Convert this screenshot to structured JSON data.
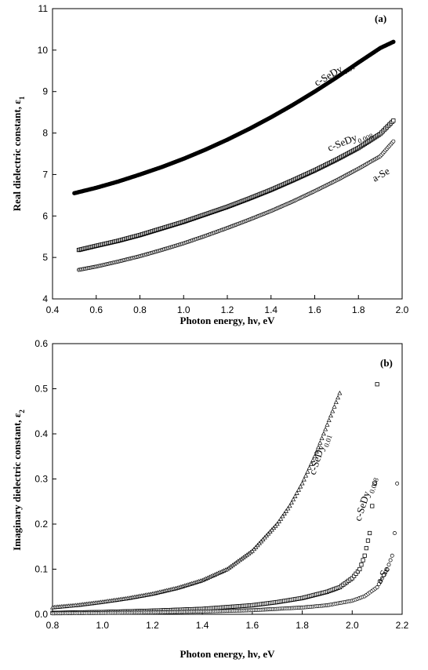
{
  "chart_data": [
    {
      "type": "scatter",
      "panel_tag": "(a)",
      "xlabel": "Photon energy, hν, eV",
      "ylabel": "Real dielectric constant, ε",
      "ylabel_sub": "1",
      "xlim": [
        0.4,
        2.0
      ],
      "ylim": [
        4,
        11
      ],
      "xticks": [
        "0.4",
        "0.6",
        "0.8",
        "1.0",
        "1.2",
        "1.4",
        "1.6",
        "1.8",
        "2.0"
      ],
      "yticks": [
        "4",
        "5",
        "6",
        "7",
        "8",
        "9",
        "10",
        "11"
      ],
      "grid": false,
      "series": [
        {
          "name": "c-SeDy",
          "name_sub": "0.01",
          "marker": "filled",
          "x": [
            0.5,
            0.6,
            0.7,
            0.8,
            0.9,
            1.0,
            1.1,
            1.2,
            1.3,
            1.4,
            1.5,
            1.6,
            1.7,
            1.8,
            1.9,
            1.96
          ],
          "y": [
            6.55,
            6.68,
            6.83,
            7.0,
            7.18,
            7.38,
            7.6,
            7.84,
            8.1,
            8.38,
            8.68,
            9.0,
            9.34,
            9.7,
            10.05,
            10.2
          ]
        },
        {
          "name": "c-SeDy",
          "name_sub": "0.008",
          "marker": "open-square",
          "x": [
            0.52,
            0.6,
            0.7,
            0.8,
            0.9,
            1.0,
            1.1,
            1.2,
            1.3,
            1.4,
            1.5,
            1.6,
            1.7,
            1.8,
            1.9,
            1.96
          ],
          "y": [
            5.18,
            5.28,
            5.4,
            5.54,
            5.7,
            5.86,
            6.04,
            6.22,
            6.42,
            6.63,
            6.86,
            7.1,
            7.36,
            7.64,
            7.98,
            8.3
          ]
        },
        {
          "name": "a-Se",
          "name_sub": "",
          "marker": "open-circle",
          "x": [
            0.52,
            0.6,
            0.7,
            0.8,
            0.9,
            1.0,
            1.1,
            1.2,
            1.3,
            1.4,
            1.5,
            1.6,
            1.7,
            1.8,
            1.9,
            1.96
          ],
          "y": [
            4.7,
            4.78,
            4.9,
            5.03,
            5.18,
            5.34,
            5.52,
            5.71,
            5.91,
            6.12,
            6.35,
            6.6,
            6.86,
            7.14,
            7.44,
            7.8
          ]
        }
      ]
    },
    {
      "type": "scatter",
      "panel_tag": "(b)",
      "xlabel": "Photon energy, hν, eV",
      "ylabel": "Imaginary dielectric constant, ε",
      "ylabel_sub": "2",
      "xlim": [
        0.8,
        2.2
      ],
      "ylim": [
        0,
        0.6
      ],
      "xticks": [
        "0.8",
        "1.0",
        "1.2",
        "1.4",
        "1.6",
        "1.8",
        "2.0",
        "2.2"
      ],
      "yticks": [
        "0.0",
        "0.1",
        "0.2",
        "0.3",
        "0.4",
        "0.5",
        "0.6"
      ],
      "grid": false,
      "series": [
        {
          "name": "c-SeDy",
          "name_sub": "0.01",
          "marker": "open-triangle",
          "x": [
            0.8,
            0.9,
            1.0,
            1.1,
            1.2,
            1.3,
            1.4,
            1.5,
            1.6,
            1.7,
            1.75,
            1.8,
            1.85,
            1.9,
            1.95
          ],
          "y": [
            0.015,
            0.02,
            0.027,
            0.035,
            0.045,
            0.058,
            0.075,
            0.1,
            0.14,
            0.2,
            0.24,
            0.29,
            0.35,
            0.42,
            0.49
          ]
        },
        {
          "name": "c-SeDy",
          "name_sub": "0.008",
          "marker": "open-square",
          "x": [
            0.8,
            1.0,
            1.2,
            1.4,
            1.6,
            1.7,
            1.8,
            1.9,
            1.95,
            2.0,
            2.03,
            2.05,
            2.07,
            2.08,
            2.09,
            2.1
          ],
          "y": [
            0.003,
            0.005,
            0.008,
            0.012,
            0.02,
            0.027,
            0.036,
            0.05,
            0.06,
            0.08,
            0.1,
            0.13,
            0.18,
            0.24,
            0.29,
            0.51
          ]
        },
        {
          "name": "a-Se",
          "name_sub": "",
          "marker": "open-circle",
          "x": [
            0.8,
            1.0,
            1.2,
            1.4,
            1.6,
            1.8,
            1.9,
            2.0,
            2.05,
            2.1,
            2.12,
            2.14,
            2.16,
            2.17,
            2.18
          ],
          "y": [
            0.002,
            0.003,
            0.004,
            0.006,
            0.009,
            0.015,
            0.02,
            0.03,
            0.04,
            0.06,
            0.08,
            0.1,
            0.13,
            0.18,
            0.29
          ]
        }
      ]
    }
  ]
}
